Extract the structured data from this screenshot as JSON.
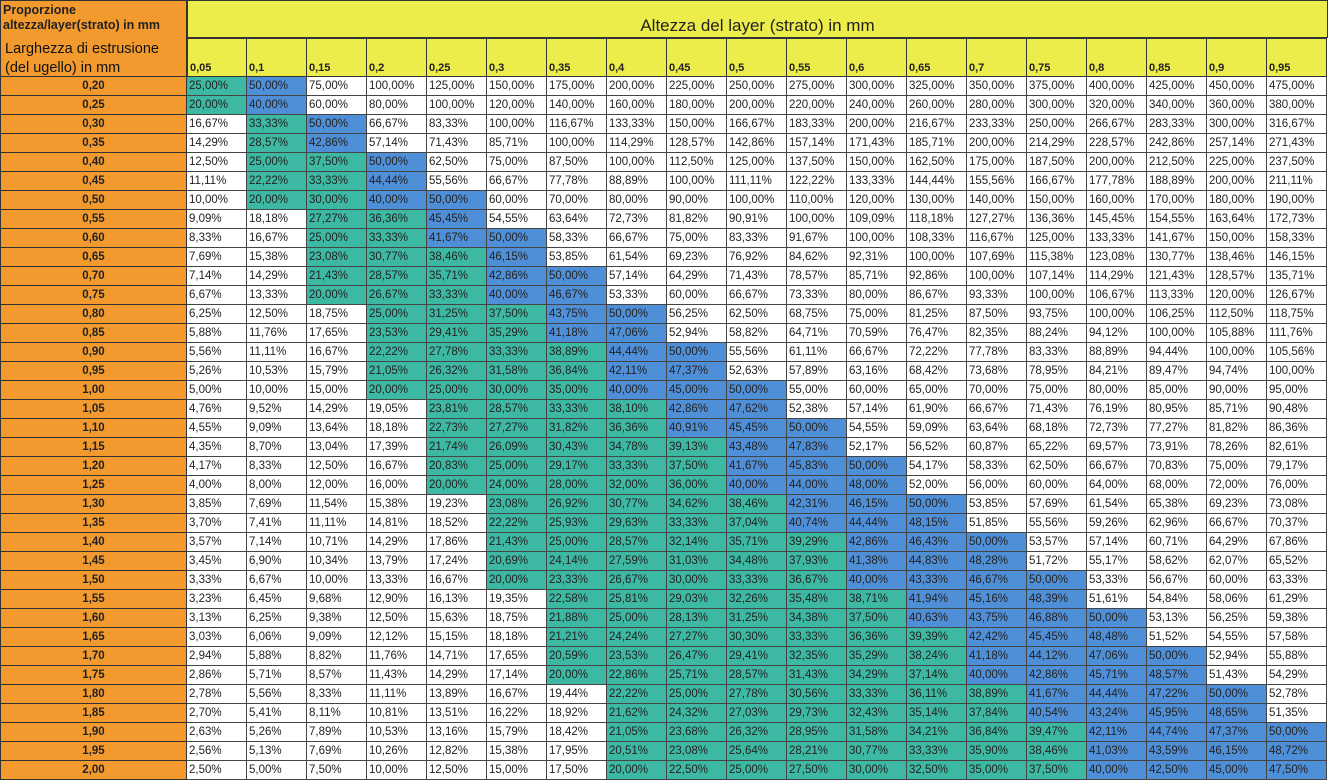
{
  "corner": {
    "title": "Proporzione altezza/layer(strato) in mm",
    "subtitle": "Larghezza di estrusione (del ugello) in mm"
  },
  "header": {
    "title": "Altezza del layer (strato)  in mm",
    "columns": [
      "0,05",
      "0,1",
      "0,15",
      "0,2",
      "0,25",
      "0,3",
      "0,35",
      "0,4",
      "0,45",
      "0,5",
      "0,55",
      "0,6",
      "0,65",
      "0,7",
      "0,75",
      "0,8",
      "0,85",
      "0,9",
      "0,95"
    ]
  },
  "colors": {
    "corner_orange": "#f29a2e",
    "header_yellow": "#ecec4a",
    "highlight_blue": "#4f8fd8",
    "highlight_teal": "#3db8a3"
  },
  "rows": [
    {
      "label": "0,20",
      "values": [
        "25,00%",
        "50,00%",
        "75,00%",
        "100,00%",
        "125,00%",
        "150,00%",
        "175,00%",
        "200,00%",
        "225,00%",
        "250,00%",
        "275,00%",
        "300,00%",
        "325,00%",
        "350,00%",
        "375,00%",
        "400,00%",
        "425,00%",
        "450,00%",
        "475,00%"
      ]
    },
    {
      "label": "0,25",
      "values": [
        "20,00%",
        "40,00%",
        "60,00%",
        "80,00%",
        "100,00%",
        "120,00%",
        "140,00%",
        "160,00%",
        "180,00%",
        "200,00%",
        "220,00%",
        "240,00%",
        "260,00%",
        "280,00%",
        "300,00%",
        "320,00%",
        "340,00%",
        "360,00%",
        "380,00%"
      ]
    },
    {
      "label": "0,30",
      "values": [
        "16,67%",
        "33,33%",
        "50,00%",
        "66,67%",
        "83,33%",
        "100,00%",
        "116,67%",
        "133,33%",
        "150,00%",
        "166,67%",
        "183,33%",
        "200,00%",
        "216,67%",
        "233,33%",
        "250,00%",
        "266,67%",
        "283,33%",
        "300,00%",
        "316,67%"
      ]
    },
    {
      "label": "0,35",
      "values": [
        "14,29%",
        "28,57%",
        "42,86%",
        "57,14%",
        "71,43%",
        "85,71%",
        "100,00%",
        "114,29%",
        "128,57%",
        "142,86%",
        "157,14%",
        "171,43%",
        "185,71%",
        "200,00%",
        "214,29%",
        "228,57%",
        "242,86%",
        "257,14%",
        "271,43%"
      ]
    },
    {
      "label": "0,40",
      "values": [
        "12,50%",
        "25,00%",
        "37,50%",
        "50,00%",
        "62,50%",
        "75,00%",
        "87,50%",
        "100,00%",
        "112,50%",
        "125,00%",
        "137,50%",
        "150,00%",
        "162,50%",
        "175,00%",
        "187,50%",
        "200,00%",
        "212,50%",
        "225,00%",
        "237,50%"
      ]
    },
    {
      "label": "0,45",
      "values": [
        "11,11%",
        "22,22%",
        "33,33%",
        "44,44%",
        "55,56%",
        "66,67%",
        "77,78%",
        "88,89%",
        "100,00%",
        "111,11%",
        "122,22%",
        "133,33%",
        "144,44%",
        "155,56%",
        "166,67%",
        "177,78%",
        "188,89%",
        "200,00%",
        "211,11%"
      ]
    },
    {
      "label": "0,50",
      "values": [
        "10,00%",
        "20,00%",
        "30,00%",
        "40,00%",
        "50,00%",
        "60,00%",
        "70,00%",
        "80,00%",
        "90,00%",
        "100,00%",
        "110,00%",
        "120,00%",
        "130,00%",
        "140,00%",
        "150,00%",
        "160,00%",
        "170,00%",
        "180,00%",
        "190,00%"
      ]
    },
    {
      "label": "0,55",
      "values": [
        "9,09%",
        "18,18%",
        "27,27%",
        "36,36%",
        "45,45%",
        "54,55%",
        "63,64%",
        "72,73%",
        "81,82%",
        "90,91%",
        "100,00%",
        "109,09%",
        "118,18%",
        "127,27%",
        "136,36%",
        "145,45%",
        "154,55%",
        "163,64%",
        "172,73%"
      ]
    },
    {
      "label": "0,60",
      "values": [
        "8,33%",
        "16,67%",
        "25,00%",
        "33,33%",
        "41,67%",
        "50,00%",
        "58,33%",
        "66,67%",
        "75,00%",
        "83,33%",
        "91,67%",
        "100,00%",
        "108,33%",
        "116,67%",
        "125,00%",
        "133,33%",
        "141,67%",
        "150,00%",
        "158,33%"
      ]
    },
    {
      "label": "0,65",
      "values": [
        "7,69%",
        "15,38%",
        "23,08%",
        "30,77%",
        "38,46%",
        "46,15%",
        "53,85%",
        "61,54%",
        "69,23%",
        "76,92%",
        "84,62%",
        "92,31%",
        "100,00%",
        "107,69%",
        "115,38%",
        "123,08%",
        "130,77%",
        "138,46%",
        "146,15%"
      ]
    },
    {
      "label": "0,70",
      "values": [
        "7,14%",
        "14,29%",
        "21,43%",
        "28,57%",
        "35,71%",
        "42,86%",
        "50,00%",
        "57,14%",
        "64,29%",
        "71,43%",
        "78,57%",
        "85,71%",
        "92,86%",
        "100,00%",
        "107,14%",
        "114,29%",
        "121,43%",
        "128,57%",
        "135,71%"
      ]
    },
    {
      "label": "0,75",
      "values": [
        "6,67%",
        "13,33%",
        "20,00%",
        "26,67%",
        "33,33%",
        "40,00%",
        "46,67%",
        "53,33%",
        "60,00%",
        "66,67%",
        "73,33%",
        "80,00%",
        "86,67%",
        "93,33%",
        "100,00%",
        "106,67%",
        "113,33%",
        "120,00%",
        "126,67%"
      ]
    },
    {
      "label": "0,80",
      "values": [
        "6,25%",
        "12,50%",
        "18,75%",
        "25,00%",
        "31,25%",
        "37,50%",
        "43,75%",
        "50,00%",
        "56,25%",
        "62,50%",
        "68,75%",
        "75,00%",
        "81,25%",
        "87,50%",
        "93,75%",
        "100,00%",
        "106,25%",
        "112,50%",
        "118,75%"
      ]
    },
    {
      "label": "0,85",
      "values": [
        "5,88%",
        "11,76%",
        "17,65%",
        "23,53%",
        "29,41%",
        "35,29%",
        "41,18%",
        "47,06%",
        "52,94%",
        "58,82%",
        "64,71%",
        "70,59%",
        "76,47%",
        "82,35%",
        "88,24%",
        "94,12%",
        "100,00%",
        "105,88%",
        "111,76%"
      ]
    },
    {
      "label": "0,90",
      "values": [
        "5,56%",
        "11,11%",
        "16,67%",
        "22,22%",
        "27,78%",
        "33,33%",
        "38,89%",
        "44,44%",
        "50,00%",
        "55,56%",
        "61,11%",
        "66,67%",
        "72,22%",
        "77,78%",
        "83,33%",
        "88,89%",
        "94,44%",
        "100,00%",
        "105,56%"
      ]
    },
    {
      "label": "0,95",
      "values": [
        "5,26%",
        "10,53%",
        "15,79%",
        "21,05%",
        "26,32%",
        "31,58%",
        "36,84%",
        "42,11%",
        "47,37%",
        "52,63%",
        "57,89%",
        "63,16%",
        "68,42%",
        "73,68%",
        "78,95%",
        "84,21%",
        "89,47%",
        "94,74%",
        "100,00%"
      ]
    },
    {
      "label": "1,00",
      "values": [
        "5,00%",
        "10,00%",
        "15,00%",
        "20,00%",
        "25,00%",
        "30,00%",
        "35,00%",
        "40,00%",
        "45,00%",
        "50,00%",
        "55,00%",
        "60,00%",
        "65,00%",
        "70,00%",
        "75,00%",
        "80,00%",
        "85,00%",
        "90,00%",
        "95,00%"
      ]
    },
    {
      "label": "1,05",
      "values": [
        "4,76%",
        "9,52%",
        "14,29%",
        "19,05%",
        "23,81%",
        "28,57%",
        "33,33%",
        "38,10%",
        "42,86%",
        "47,62%",
        "52,38%",
        "57,14%",
        "61,90%",
        "66,67%",
        "71,43%",
        "76,19%",
        "80,95%",
        "85,71%",
        "90,48%"
      ]
    },
    {
      "label": "1,10",
      "values": [
        "4,55%",
        "9,09%",
        "13,64%",
        "18,18%",
        "22,73%",
        "27,27%",
        "31,82%",
        "36,36%",
        "40,91%",
        "45,45%",
        "50,00%",
        "54,55%",
        "59,09%",
        "63,64%",
        "68,18%",
        "72,73%",
        "77,27%",
        "81,82%",
        "86,36%"
      ]
    },
    {
      "label": "1,15",
      "values": [
        "4,35%",
        "8,70%",
        "13,04%",
        "17,39%",
        "21,74%",
        "26,09%",
        "30,43%",
        "34,78%",
        "39,13%",
        "43,48%",
        "47,83%",
        "52,17%",
        "56,52%",
        "60,87%",
        "65,22%",
        "69,57%",
        "73,91%",
        "78,26%",
        "82,61%"
      ]
    },
    {
      "label": "1,20",
      "values": [
        "4,17%",
        "8,33%",
        "12,50%",
        "16,67%",
        "20,83%",
        "25,00%",
        "29,17%",
        "33,33%",
        "37,50%",
        "41,67%",
        "45,83%",
        "50,00%",
        "54,17%",
        "58,33%",
        "62,50%",
        "66,67%",
        "70,83%",
        "75,00%",
        "79,17%"
      ]
    },
    {
      "label": "1,25",
      "values": [
        "4,00%",
        "8,00%",
        "12,00%",
        "16,00%",
        "20,00%",
        "24,00%",
        "28,00%",
        "32,00%",
        "36,00%",
        "40,00%",
        "44,00%",
        "48,00%",
        "52,00%",
        "56,00%",
        "60,00%",
        "64,00%",
        "68,00%",
        "72,00%",
        "76,00%"
      ]
    },
    {
      "label": "1,30",
      "values": [
        "3,85%",
        "7,69%",
        "11,54%",
        "15,38%",
        "19,23%",
        "23,08%",
        "26,92%",
        "30,77%",
        "34,62%",
        "38,46%",
        "42,31%",
        "46,15%",
        "50,00%",
        "53,85%",
        "57,69%",
        "61,54%",
        "65,38%",
        "69,23%",
        "73,08%"
      ]
    },
    {
      "label": "1,35",
      "values": [
        "3,70%",
        "7,41%",
        "11,11%",
        "14,81%",
        "18,52%",
        "22,22%",
        "25,93%",
        "29,63%",
        "33,33%",
        "37,04%",
        "40,74%",
        "44,44%",
        "48,15%",
        "51,85%",
        "55,56%",
        "59,26%",
        "62,96%",
        "66,67%",
        "70,37%"
      ]
    },
    {
      "label": "1,40",
      "values": [
        "3,57%",
        "7,14%",
        "10,71%",
        "14,29%",
        "17,86%",
        "21,43%",
        "25,00%",
        "28,57%",
        "32,14%",
        "35,71%",
        "39,29%",
        "42,86%",
        "46,43%",
        "50,00%",
        "53,57%",
        "57,14%",
        "60,71%",
        "64,29%",
        "67,86%"
      ]
    },
    {
      "label": "1,45",
      "values": [
        "3,45%",
        "6,90%",
        "10,34%",
        "13,79%",
        "17,24%",
        "20,69%",
        "24,14%",
        "27,59%",
        "31,03%",
        "34,48%",
        "37,93%",
        "41,38%",
        "44,83%",
        "48,28%",
        "51,72%",
        "55,17%",
        "58,62%",
        "62,07%",
        "65,52%"
      ]
    },
    {
      "label": "1,50",
      "values": [
        "3,33%",
        "6,67%",
        "10,00%",
        "13,33%",
        "16,67%",
        "20,00%",
        "23,33%",
        "26,67%",
        "30,00%",
        "33,33%",
        "36,67%",
        "40,00%",
        "43,33%",
        "46,67%",
        "50,00%",
        "53,33%",
        "56,67%",
        "60,00%",
        "63,33%"
      ]
    },
    {
      "label": "1,55",
      "values": [
        "3,23%",
        "6,45%",
        "9,68%",
        "12,90%",
        "16,13%",
        "19,35%",
        "22,58%",
        "25,81%",
        "29,03%",
        "32,26%",
        "35,48%",
        "38,71%",
        "41,94%",
        "45,16%",
        "48,39%",
        "51,61%",
        "54,84%",
        "58,06%",
        "61,29%"
      ]
    },
    {
      "label": "1,60",
      "values": [
        "3,13%",
        "6,25%",
        "9,38%",
        "12,50%",
        "15,63%",
        "18,75%",
        "21,88%",
        "25,00%",
        "28,13%",
        "31,25%",
        "34,38%",
        "37,50%",
        "40,63%",
        "43,75%",
        "46,88%",
        "50,00%",
        "53,13%",
        "56,25%",
        "59,38%"
      ]
    },
    {
      "label": "1,65",
      "values": [
        "3,03%",
        "6,06%",
        "9,09%",
        "12,12%",
        "15,15%",
        "18,18%",
        "21,21%",
        "24,24%",
        "27,27%",
        "30,30%",
        "33,33%",
        "36,36%",
        "39,39%",
        "42,42%",
        "45,45%",
        "48,48%",
        "51,52%",
        "54,55%",
        "57,58%"
      ]
    },
    {
      "label": "1,70",
      "values": [
        "2,94%",
        "5,88%",
        "8,82%",
        "11,76%",
        "14,71%",
        "17,65%",
        "20,59%",
        "23,53%",
        "26,47%",
        "29,41%",
        "32,35%",
        "35,29%",
        "38,24%",
        "41,18%",
        "44,12%",
        "47,06%",
        "50,00%",
        "52,94%",
        "55,88%"
      ]
    },
    {
      "label": "1,75",
      "values": [
        "2,86%",
        "5,71%",
        "8,57%",
        "11,43%",
        "14,29%",
        "17,14%",
        "20,00%",
        "22,86%",
        "25,71%",
        "28,57%",
        "31,43%",
        "34,29%",
        "37,14%",
        "40,00%",
        "42,86%",
        "45,71%",
        "48,57%",
        "51,43%",
        "54,29%"
      ]
    },
    {
      "label": "1,80",
      "values": [
        "2,78%",
        "5,56%",
        "8,33%",
        "11,11%",
        "13,89%",
        "16,67%",
        "19,44%",
        "22,22%",
        "25,00%",
        "27,78%",
        "30,56%",
        "33,33%",
        "36,11%",
        "38,89%",
        "41,67%",
        "44,44%",
        "47,22%",
        "50,00%",
        "52,78%"
      ]
    },
    {
      "label": "1,85",
      "values": [
        "2,70%",
        "5,41%",
        "8,11%",
        "10,81%",
        "13,51%",
        "16,22%",
        "18,92%",
        "21,62%",
        "24,32%",
        "27,03%",
        "29,73%",
        "32,43%",
        "35,14%",
        "37,84%",
        "40,54%",
        "43,24%",
        "45,95%",
        "48,65%",
        "51,35%"
      ]
    },
    {
      "label": "1,90",
      "values": [
        "2,63%",
        "5,26%",
        "7,89%",
        "10,53%",
        "13,16%",
        "15,79%",
        "18,42%",
        "21,05%",
        "23,68%",
        "26,32%",
        "28,95%",
        "31,58%",
        "34,21%",
        "36,84%",
        "39,47%",
        "42,11%",
        "44,74%",
        "47,37%",
        "50,00%"
      ]
    },
    {
      "label": "1,95",
      "values": [
        "2,56%",
        "5,13%",
        "7,69%",
        "10,26%",
        "12,82%",
        "15,38%",
        "17,95%",
        "20,51%",
        "23,08%",
        "25,64%",
        "28,21%",
        "30,77%",
        "33,33%",
        "35,90%",
        "38,46%",
        "41,03%",
        "43,59%",
        "46,15%",
        "48,72%"
      ]
    },
    {
      "label": "2,00",
      "values": [
        "2,50%",
        "5,00%",
        "7,50%",
        "10,00%",
        "12,50%",
        "15,00%",
        "17,50%",
        "20,00%",
        "22,50%",
        "25,00%",
        "27,50%",
        "30,00%",
        "32,50%",
        "35,00%",
        "37,50%",
        "40,00%",
        "42,50%",
        "45,00%",
        "47,50%"
      ]
    }
  ]
}
